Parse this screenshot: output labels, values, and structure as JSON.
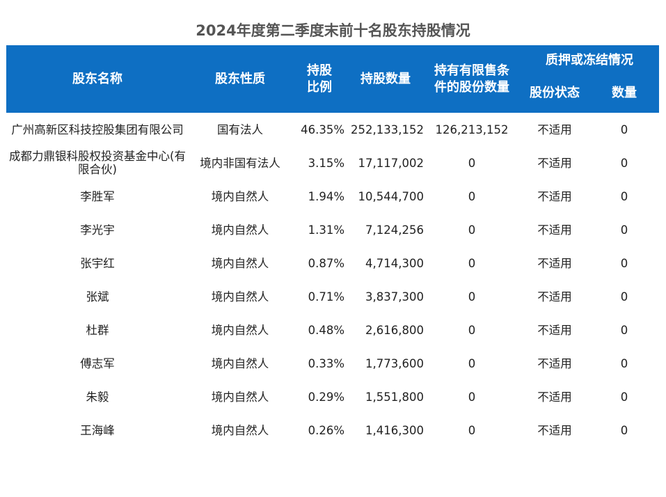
{
  "title": "2024年度第二季度末前十名股东持股情况",
  "header": {
    "name": "股东名称",
    "nature": "股东性质",
    "ratio_l1": "持股",
    "ratio_l2": "比例",
    "shares": "持股数量",
    "restricted_l1": "持有有限售条",
    "restricted_l2": "件的股份数量",
    "pledge_group": "质押或冻结情况",
    "pledge_status": "股份状态",
    "pledge_qty": "数量"
  },
  "rows": [
    {
      "name": "广州高新区科技控股集团有限公司",
      "nature": "国有法人",
      "ratio": "46.35%",
      "shares": "252,133,152",
      "restricted": "126,213,152",
      "status": "不适用",
      "qty": "0"
    },
    {
      "name": "成都力鼎银科股权投资基金中心(有限合伙)",
      "nature": "境内非国有法人",
      "ratio": "3.15%",
      "shares": "17,117,002",
      "restricted": "0",
      "status": "不适用",
      "qty": "0"
    },
    {
      "name": "李胜军",
      "nature": "境内自然人",
      "ratio": "1.94%",
      "shares": "10,544,700",
      "restricted": "0",
      "status": "不适用",
      "qty": "0"
    },
    {
      "name": "李光宇",
      "nature": "境内自然人",
      "ratio": "1.31%",
      "shares": "7,124,256",
      "restricted": "0",
      "status": "不适用",
      "qty": "0"
    },
    {
      "name": "张宇红",
      "nature": "境内自然人",
      "ratio": "0.87%",
      "shares": "4,714,300",
      "restricted": "0",
      "status": "不适用",
      "qty": "0"
    },
    {
      "name": "张斌",
      "nature": "境内自然人",
      "ratio": "0.71%",
      "shares": "3,837,300",
      "restricted": "0",
      "status": "不适用",
      "qty": "0"
    },
    {
      "name": "杜群",
      "nature": "境内自然人",
      "ratio": "0.48%",
      "shares": "2,616,800",
      "restricted": "0",
      "status": "不适用",
      "qty": "0"
    },
    {
      "name": "傅志军",
      "nature": "境内自然人",
      "ratio": "0.33%",
      "shares": "1,773,600",
      "restricted": "0",
      "status": "不适用",
      "qty": "0"
    },
    {
      "name": "朱毅",
      "nature": "境内自然人",
      "ratio": "0.29%",
      "shares": "1,551,800",
      "restricted": "0",
      "status": "不适用",
      "qty": "0"
    },
    {
      "name": "王海峰",
      "nature": "境内自然人",
      "ratio": "0.26%",
      "shares": "1,416,300",
      "restricted": "0",
      "status": "不适用",
      "qty": "0"
    }
  ]
}
